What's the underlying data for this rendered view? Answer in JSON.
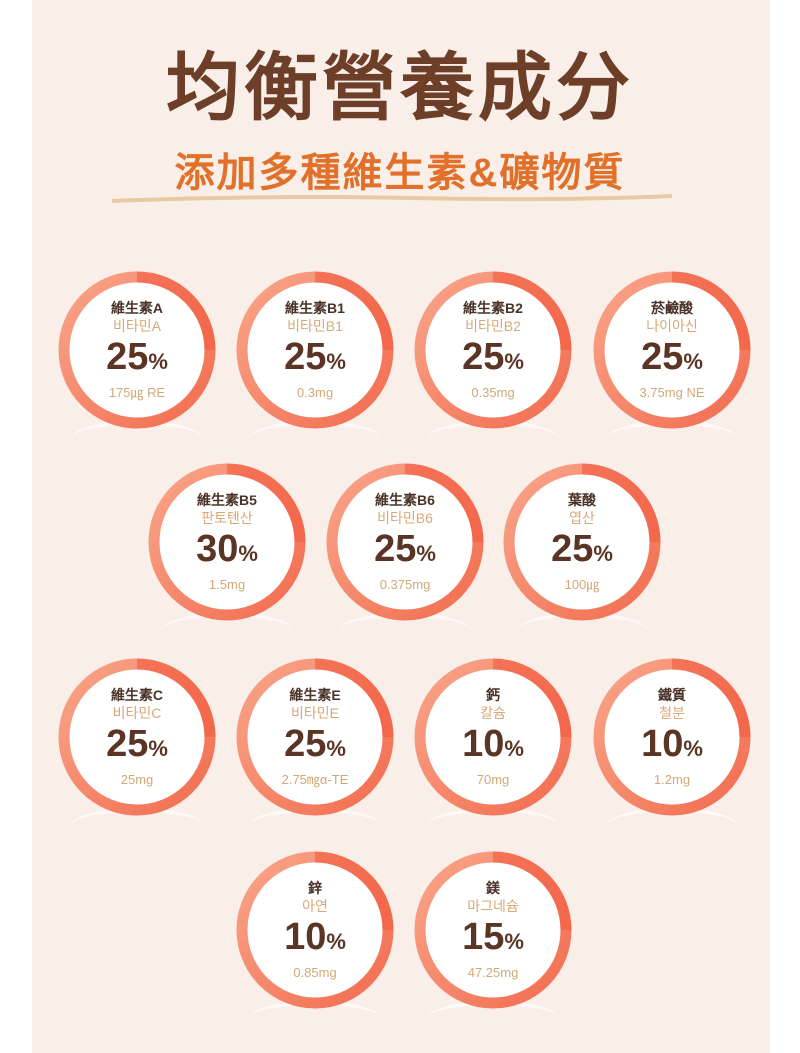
{
  "header": {
    "title": "均衡營養成分",
    "subtitle": "添加多種維生素&礦物質"
  },
  "colors": {
    "ring": "#f26c4f",
    "ring_light": "#f9a58a",
    "title": "#6e3f28",
    "subtitle": "#e0702a",
    "background": "#f9efe8"
  },
  "nutrients": [
    {
      "name": "維生素A",
      "korean": "비타민A",
      "percent": "25",
      "unit": "%",
      "amount": "175㎍ RE"
    },
    {
      "name": "維生素B1",
      "korean": "비타민B1",
      "percent": "25",
      "unit": "%",
      "amount": "0.3mg"
    },
    {
      "name": "維生素B2",
      "korean": "비타민B2",
      "percent": "25",
      "unit": "%",
      "amount": "0.35mg"
    },
    {
      "name": "菸鹼酸",
      "korean": "나이아신",
      "percent": "25",
      "unit": "%",
      "amount": "3.75mg NE"
    },
    {
      "name": "維生素B5",
      "korean": "판토텐산",
      "percent": "30",
      "unit": "%",
      "amount": "1.5mg"
    },
    {
      "name": "維生素B6",
      "korean": "비타민B6",
      "percent": "25",
      "unit": "%",
      "amount": "0.375mg"
    },
    {
      "name": "葉酸",
      "korean": "엽산",
      "percent": "25",
      "unit": "%",
      "amount": "100㎍"
    },
    {
      "name": "維生素C",
      "korean": "비타민C",
      "percent": "25",
      "unit": "%",
      "amount": "25mg"
    },
    {
      "name": "維生素E",
      "korean": "비타민E",
      "percent": "25",
      "unit": "%",
      "amount": "2.75㎎α-TE"
    },
    {
      "name": "鈣",
      "korean": "칼슘",
      "percent": "10",
      "unit": "%",
      "amount": "70mg"
    },
    {
      "name": "鐵質",
      "korean": "철분",
      "percent": "10",
      "unit": "%",
      "amount": "1.2mg"
    },
    {
      "name": "鋅",
      "korean": "아연",
      "percent": "10",
      "unit": "%",
      "amount": "0.85mg"
    },
    {
      "name": "鎂",
      "korean": "마그네슘",
      "percent": "15",
      "unit": "%",
      "amount": "47.25mg"
    }
  ]
}
